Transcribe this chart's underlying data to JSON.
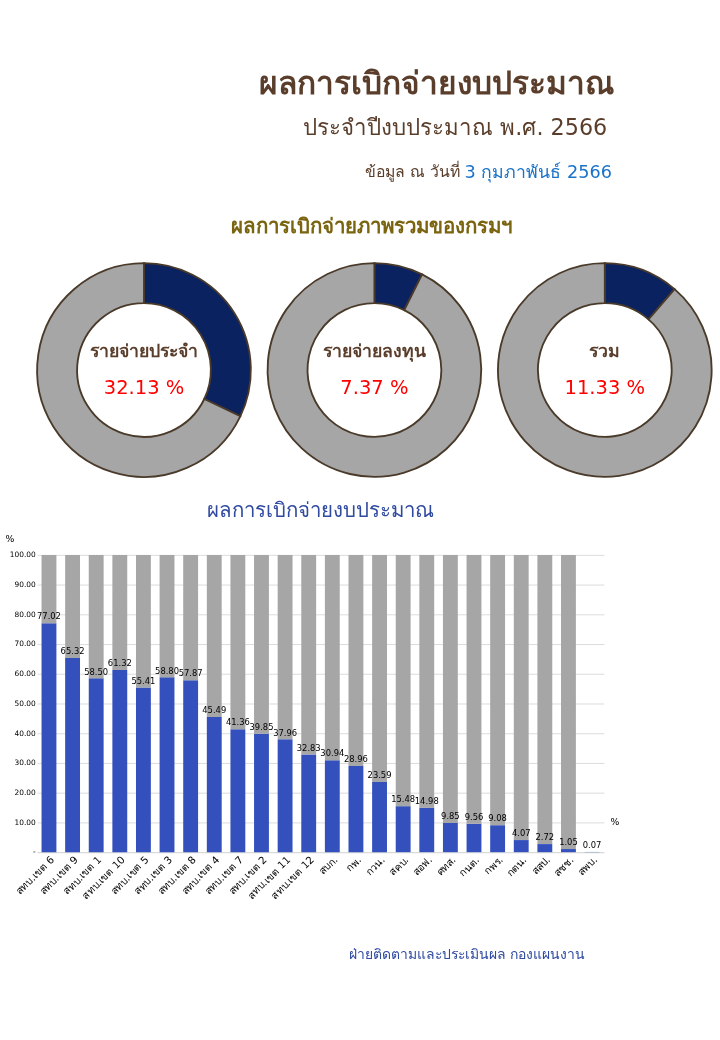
{
  "chart_data": [
    {
      "type": "other",
      "title": "ผลการเบิกจ่ายงบประมาณ",
      "subtitle": "ประจำปีงบประมาณ พ.ศ. 2566",
      "annotations": [
        "ข้อมูล ณ วันที่",
        "3 กุมภาพันธ์ 2566",
        "ผลการเบิกจ่ายภาพรวมของกรมฯ"
      ]
    },
    {
      "type": "donut",
      "title": "รายจ่ายประจำ",
      "categories": [
        null,
        null
      ],
      "values": [
        32.13,
        67.87
      ],
      "colors": [
        "#0b2260",
        "#a6a6a6"
      ],
      "annotations": [
        "32.13 %"
      ]
    },
    {
      "type": "donut",
      "title": "รายจ่ายลงทุน",
      "categories": [
        null,
        null
      ],
      "values": [
        7.37,
        92.63
      ],
      "colors": [
        "#0b2260",
        "#a6a6a6"
      ],
      "annotations": [
        "7.37 %"
      ]
    },
    {
      "type": "donut",
      "title": "รวม",
      "categories": [
        null,
        null
      ],
      "values": [
        11.33,
        88.67
      ],
      "colors": [
        "#0b2260",
        "#a6a6a6"
      ],
      "annotations": [
        "11.33 %"
      ]
    },
    {
      "type": "bar",
      "title": "ผลการเบิกจ่ายงบประมาณ",
      "ylabel": "%",
      "stacked": true,
      "grid": "y",
      "categories": [
        "สทบ.เขต 6",
        "สทบ.เขต 9",
        "สทบ.เขต 1",
        "สทบ.เขต 10",
        "สทบ.เขต 5",
        "สทบ.เขต 3",
        "สทบ.เขต 8",
        "สทบ.เขต 4",
        "สทบ.เขต 7",
        "สทบ.เขต 2",
        "สทบ.เขต 11",
        "สทบ.เขต 12",
        "สบก.",
        "กพ.",
        "กวน.",
        "สคบ.",
        "สอฟ.",
        "ศทส.",
        "กนต.",
        "กพร.",
        "กตน.",
        "สสป.",
        "สชช.",
        "สพบ."
      ],
      "series": [
        {
          "color": "#3350bd",
          "values": [
            77.02,
            65.32,
            58.5,
            61.32,
            55.41,
            58.8,
            57.87,
            45.49,
            41.36,
            39.85,
            37.96,
            32.83,
            30.94,
            28.96,
            23.59,
            15.48,
            14.98,
            9.85,
            9.56,
            9.08,
            4.07,
            2.72,
            1.05,
            0.07
          ],
          "value_labels": [
            "77.02",
            "65.32",
            "58.50",
            "61.32",
            "55.41",
            "58.80",
            "57.87",
            "45.49",
            "41.36",
            "39.85",
            "37.96",
            "32.83",
            "30.94",
            "28.96",
            "23.59",
            "15.48",
            "14.98",
            "9.85",
            "9.56",
            "9.08",
            "4.07",
            "2.72",
            "1.05",
            "0.07"
          ]
        },
        {
          "color": "#a6a6a6",
          "values": [
            22.98,
            34.68,
            41.5,
            38.68,
            44.59,
            41.2,
            42.13,
            54.51,
            58.64,
            60.15,
            62.04,
            67.17,
            69.06,
            71.04,
            76.41,
            84.52,
            85.02,
            90.15,
            90.44,
            90.92,
            95.93,
            97.28,
            98.95,
            null
          ]
        }
      ],
      "ylim": [
        0,
        100
      ],
      "yticks": [
        {
          "value": 0,
          "label": "-"
        },
        {
          "value": 10,
          "label": "10.00"
        },
        {
          "value": 20,
          "label": "20.00"
        },
        {
          "value": 30,
          "label": "30.00"
        },
        {
          "value": 40,
          "label": "40.00"
        },
        {
          "value": 50,
          "label": "50.00"
        },
        {
          "value": 60,
          "label": "60.00"
        },
        {
          "value": 70,
          "label": "70.00"
        },
        {
          "value": 80,
          "label": "80.00"
        },
        {
          "value": 90,
          "label": "90.00"
        },
        {
          "value": 100,
          "label": "100.00"
        }
      ],
      "annotations": [
        "%",
        "ฝ่ายติดตามและประเมินผล  กองแผนงาน"
      ]
    }
  ]
}
